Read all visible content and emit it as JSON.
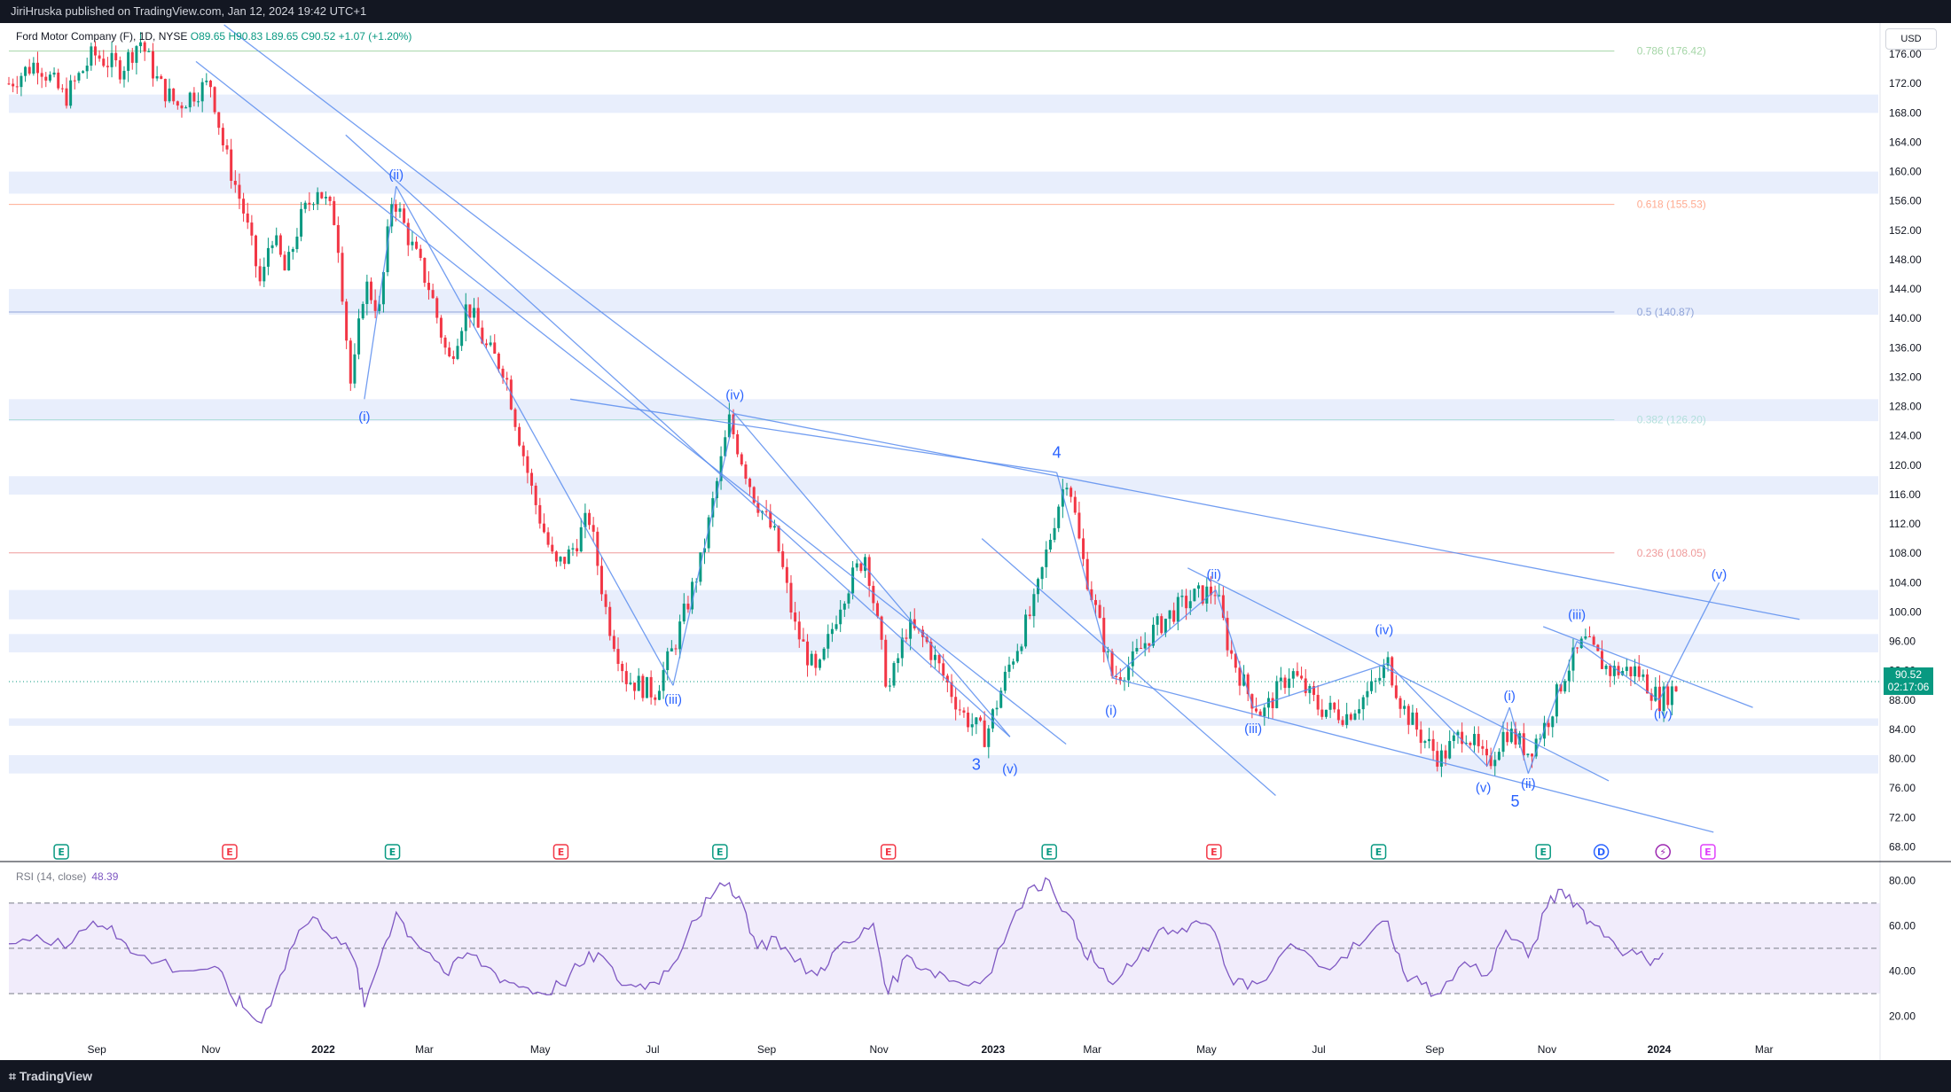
{
  "header": {
    "published": "JiriHruska published on TradingView.com, Jan 12, 2024 19:42 UTC+1"
  },
  "ohlc": {
    "symbol": "Ford Motor Company (F), 1D, NYSE",
    "open": "O89.65",
    "high": "H90.83",
    "low": "L89.65",
    "close": "C90.52",
    "change": "+1.07 (+1.20%)"
  },
  "currency_button": "USD",
  "last_price": {
    "value": "90.52",
    "countdown": "02:17:06"
  },
  "footer": {
    "brand": "TradingView"
  },
  "colors": {
    "up": "#089981",
    "down": "#f23645",
    "wave_line": "#5b8def",
    "zone_fill": "#e8eefc",
    "rsi_line": "#7e57c2",
    "rsi_band": "#f1ecfb",
    "fib_0786": "#a5d6a7",
    "fib_0618": "#ffab91",
    "fib_05": "#90a4d8",
    "fib_0382": "#b2dfdb",
    "fib_0236": "#ef9a9a"
  },
  "chart_data": {
    "type": "candlestick",
    "price_scale": {
      "ylim": [
        66,
        180
      ],
      "ticks": [
        68,
        72,
        76,
        80,
        84,
        88,
        92,
        96,
        100,
        104,
        108,
        112,
        116,
        120,
        124,
        128,
        132,
        136,
        140,
        144,
        148,
        152,
        156,
        160,
        164,
        168,
        172,
        176
      ]
    },
    "time_axis": {
      "xlim": [
        0,
        1000
      ],
      "labels": [
        {
          "t": 47,
          "text": "Sep"
        },
        {
          "t": 108,
          "text": "Nov"
        },
        {
          "t": 168,
          "text": "2022"
        },
        {
          "t": 222,
          "text": "Mar"
        },
        {
          "t": 284,
          "text": "May"
        },
        {
          "t": 344,
          "text": "Jul"
        },
        {
          "t": 405,
          "text": "Sep"
        },
        {
          "t": 465,
          "text": "Nov"
        },
        {
          "t": 526,
          "text": "2023"
        },
        {
          "t": 579,
          "text": "Mar"
        },
        {
          "t": 640,
          "text": "May"
        },
        {
          "t": 700,
          "text": "Jul"
        },
        {
          "t": 762,
          "text": "Sep"
        },
        {
          "t": 822,
          "text": "Nov"
        },
        {
          "t": 882,
          "text": "2024"
        },
        {
          "t": 938,
          "text": "Mar"
        }
      ]
    },
    "path_points": [
      [
        0,
        172
      ],
      [
        15,
        175
      ],
      [
        30,
        170
      ],
      [
        45,
        176
      ],
      [
        60,
        174
      ],
      [
        70,
        178
      ],
      [
        80,
        172
      ],
      [
        90,
        169
      ],
      [
        100,
        171
      ],
      [
        108,
        172
      ],
      [
        115,
        163
      ],
      [
        125,
        155
      ],
      [
        135,
        144
      ],
      [
        140,
        152
      ],
      [
        148,
        146
      ],
      [
        155,
        153
      ],
      [
        165,
        158
      ],
      [
        175,
        153
      ],
      [
        183,
        130
      ],
      [
        190,
        145
      ],
      [
        198,
        141
      ],
      [
        205,
        157
      ],
      [
        215,
        150
      ],
      [
        225,
        144
      ],
      [
        235,
        134
      ],
      [
        245,
        142
      ],
      [
        255,
        136
      ],
      [
        265,
        133
      ],
      [
        270,
        127
      ],
      [
        280,
        116
      ],
      [
        292,
        106
      ],
      [
        300,
        108
      ],
      [
        310,
        113
      ],
      [
        320,
        99
      ],
      [
        330,
        91
      ],
      [
        345,
        89
      ],
      [
        355,
        95
      ],
      [
        370,
        107
      ],
      [
        385,
        126
      ],
      [
        398,
        116
      ],
      [
        410,
        110
      ],
      [
        420,
        98
      ],
      [
        432,
        91
      ],
      [
        445,
        102
      ],
      [
        458,
        108
      ],
      [
        470,
        89
      ],
      [
        480,
        98
      ],
      [
        490,
        96
      ],
      [
        500,
        91
      ],
      [
        510,
        86
      ],
      [
        522,
        83
      ],
      [
        535,
        93
      ],
      [
        548,
        101
      ],
      [
        560,
        114
      ],
      [
        566,
        119
      ],
      [
        573,
        108
      ],
      [
        580,
        101
      ],
      [
        590,
        91
      ],
      [
        600,
        93
      ],
      [
        610,
        97
      ],
      [
        622,
        100
      ],
      [
        633,
        102
      ],
      [
        645,
        103
      ],
      [
        652,
        95
      ],
      [
        662,
        89
      ],
      [
        670,
        86
      ],
      [
        685,
        92
      ],
      [
        700,
        87
      ],
      [
        715,
        86
      ],
      [
        730,
        90
      ],
      [
        737,
        93
      ],
      [
        745,
        87
      ],
      [
        755,
        83
      ],
      [
        765,
        80
      ],
      [
        778,
        84
      ],
      [
        790,
        79
      ],
      [
        800,
        84
      ],
      [
        812,
        81
      ],
      [
        822,
        85
      ],
      [
        832,
        92
      ],
      [
        842,
        96
      ],
      [
        855,
        92
      ],
      [
        870,
        92
      ],
      [
        882,
        88
      ],
      [
        892,
        90
      ]
    ],
    "horizontal_zones": [
      [
        168,
        170.5
      ],
      [
        157,
        160
      ],
      [
        140.5,
        144
      ],
      [
        126,
        129
      ],
      [
        116,
        118.5
      ],
      [
        94.5,
        97
      ],
      [
        84.5,
        85.5
      ],
      [
        78,
        80.5
      ],
      [
        99,
        103
      ]
    ],
    "fibonacci": [
      {
        "label": "0.786 (176.42)",
        "price": 176.42
      },
      {
        "label": "0.618 (155.53)",
        "price": 155.53
      },
      {
        "label": "0.5 (140.87)",
        "price": 140.87
      },
      {
        "label": "0.382 (126.20)",
        "price": 126.2
      },
      {
        "label": "0.236 (108.05)",
        "price": 108.05
      }
    ],
    "wave_labels": [
      {
        "text": "(ii)",
        "t": 207,
        "price": 159
      },
      {
        "text": "(i)",
        "t": 190,
        "price": 126
      },
      {
        "text": "(iii)",
        "t": 355,
        "price": 87.5
      },
      {
        "text": "(iv)",
        "t": 388,
        "price": 129
      },
      {
        "text": "3",
        "t": 517,
        "price": 78.5
      },
      {
        "text": "(v)",
        "t": 535,
        "price": 78
      },
      {
        "text": "4",
        "t": 560,
        "price": 121
      },
      {
        "text": "(i)",
        "t": 589,
        "price": 86
      },
      {
        "text": "(ii)",
        "t": 644,
        "price": 104.5
      },
      {
        "text": "(iii)",
        "t": 665,
        "price": 83.5
      },
      {
        "text": "(iv)",
        "t": 735,
        "price": 97
      },
      {
        "text": "(v)",
        "t": 788,
        "price": 75.5
      },
      {
        "text": "(ii)",
        "t": 812,
        "price": 76
      },
      {
        "text": "5",
        "t": 805,
        "price": 73.5
      },
      {
        "text": "(i)",
        "t": 802,
        "price": 88
      },
      {
        "text": "(iii)",
        "t": 838,
        "price": 99
      },
      {
        "text": "(iv)",
        "t": 884,
        "price": 85.5
      },
      {
        "text": "(v)",
        "t": 914,
        "price": 104.5
      }
    ],
    "trend_lines": [
      [
        [
          115,
          180
        ],
        [
          388,
          127
        ]
      ],
      [
        [
          388,
          127
        ],
        [
          957,
          99
        ]
      ],
      [
        [
          300,
          129
        ],
        [
          560,
          119
        ]
      ],
      [
        [
          190,
          129
        ],
        [
          207,
          158
        ]
      ],
      [
        [
          207,
          158
        ],
        [
          355,
          90
        ]
      ],
      [
        [
          355,
          90
        ],
        [
          388,
          127
        ]
      ],
      [
        [
          388,
          127
        ],
        [
          535,
          83
        ]
      ],
      [
        [
          560,
          119
        ],
        [
          590,
          91
        ]
      ],
      [
        [
          590,
          91
        ],
        [
          645,
          103
        ]
      ],
      [
        [
          645,
          103
        ],
        [
          665,
          87
        ]
      ],
      [
        [
          665,
          87
        ],
        [
          737,
          93
        ]
      ],
      [
        [
          737,
          93
        ],
        [
          790,
          79
        ]
      ],
      [
        [
          790,
          79
        ],
        [
          802,
          87
        ]
      ],
      [
        [
          802,
          87
        ],
        [
          812,
          78
        ]
      ],
      [
        [
          812,
          78
        ],
        [
          838,
          96
        ]
      ],
      [
        [
          838,
          96
        ],
        [
          882,
          88
        ]
      ],
      [
        [
          882,
          88
        ],
        [
          914,
          104
        ]
      ],
      [
        [
          590,
          91
        ],
        [
          911,
          70
        ]
      ],
      [
        [
          630,
          106
        ],
        [
          855,
          77
        ]
      ],
      [
        [
          520,
          110
        ],
        [
          677,
          75
        ]
      ],
      [
        [
          820,
          98
        ],
        [
          932,
          87
        ]
      ],
      [
        [
          100,
          175
        ],
        [
          565,
          82
        ]
      ],
      [
        [
          180,
          165
        ],
        [
          535,
          83
        ]
      ]
    ],
    "events": [
      {
        "t": 28,
        "k": "E",
        "c": "g"
      },
      {
        "t": 118,
        "k": "E",
        "c": "r"
      },
      {
        "t": 205,
        "k": "E",
        "c": "g"
      },
      {
        "t": 295,
        "k": "E",
        "c": "r"
      },
      {
        "t": 380,
        "k": "E",
        "c": "g"
      },
      {
        "t": 470,
        "k": "E",
        "c": "r"
      },
      {
        "t": 556,
        "k": "E",
        "c": "g"
      },
      {
        "t": 644,
        "k": "E",
        "c": "r"
      },
      {
        "t": 732,
        "k": "E",
        "c": "g"
      },
      {
        "t": 820,
        "k": "E",
        "c": "g"
      },
      {
        "t": 851,
        "k": "D",
        "c": "b"
      },
      {
        "t": 884,
        "k": "⚡",
        "c": "p"
      },
      {
        "t": 908,
        "k": "E",
        "c": "m"
      }
    ],
    "rsi": {
      "label": "RSI (14, close)",
      "value": "48.39",
      "ylim": [
        10,
        86
      ],
      "ticks": [
        20,
        40,
        60,
        80
      ],
      "band": [
        30,
        70
      ],
      "mid": 50,
      "path_points": [
        [
          0,
          52
        ],
        [
          15,
          56
        ],
        [
          30,
          50
        ],
        [
          45,
          62
        ],
        [
          55,
          60
        ],
        [
          65,
          48
        ],
        [
          80,
          44
        ],
        [
          95,
          40
        ],
        [
          110,
          42
        ],
        [
          118,
          30
        ],
        [
          125,
          24
        ],
        [
          135,
          17
        ],
        [
          145,
          38
        ],
        [
          155,
          58
        ],
        [
          165,
          63
        ],
        [
          175,
          55
        ],
        [
          185,
          44
        ],
        [
          190,
          24
        ],
        [
          200,
          50
        ],
        [
          207,
          66
        ],
        [
          215,
          55
        ],
        [
          225,
          48
        ],
        [
          235,
          38
        ],
        [
          245,
          48
        ],
        [
          255,
          42
        ],
        [
          265,
          36
        ],
        [
          275,
          33
        ],
        [
          285,
          30
        ],
        [
          295,
          34
        ],
        [
          305,
          42
        ],
        [
          315,
          48
        ],
        [
          325,
          36
        ],
        [
          335,
          33
        ],
        [
          345,
          35
        ],
        [
          355,
          43
        ],
        [
          365,
          62
        ],
        [
          375,
          72
        ],
        [
          385,
          79
        ],
        [
          392,
          70
        ],
        [
          400,
          50
        ],
        [
          410,
          55
        ],
        [
          420,
          44
        ],
        [
          432,
          38
        ],
        [
          440,
          48
        ],
        [
          452,
          53
        ],
        [
          462,
          61
        ],
        [
          470,
          30
        ],
        [
          480,
          47
        ],
        [
          490,
          41
        ],
        [
          500,
          38
        ],
        [
          510,
          34
        ],
        [
          522,
          37
        ],
        [
          535,
          60
        ],
        [
          548,
          78
        ],
        [
          556,
          80
        ],
        [
          565,
          66
        ],
        [
          573,
          52
        ],
        [
          580,
          44
        ],
        [
          590,
          34
        ],
        [
          600,
          42
        ],
        [
          612,
          54
        ],
        [
          622,
          58
        ],
        [
          632,
          61
        ],
        [
          642,
          60
        ],
        [
          652,
          38
        ],
        [
          662,
          32
        ],
        [
          672,
          36
        ],
        [
          685,
          52
        ],
        [
          700,
          42
        ],
        [
          712,
          46
        ],
        [
          725,
          54
        ],
        [
          737,
          62
        ],
        [
          745,
          40
        ],
        [
          755,
          34
        ],
        [
          765,
          30
        ],
        [
          778,
          44
        ],
        [
          790,
          38
        ],
        [
          800,
          58
        ],
        [
          812,
          46
        ],
        [
          822,
          68
        ],
        [
          830,
          76
        ],
        [
          838,
          70
        ],
        [
          845,
          62
        ],
        [
          855,
          55
        ],
        [
          865,
          48
        ],
        [
          875,
          45
        ],
        [
          884,
          48
        ]
      ]
    }
  }
}
